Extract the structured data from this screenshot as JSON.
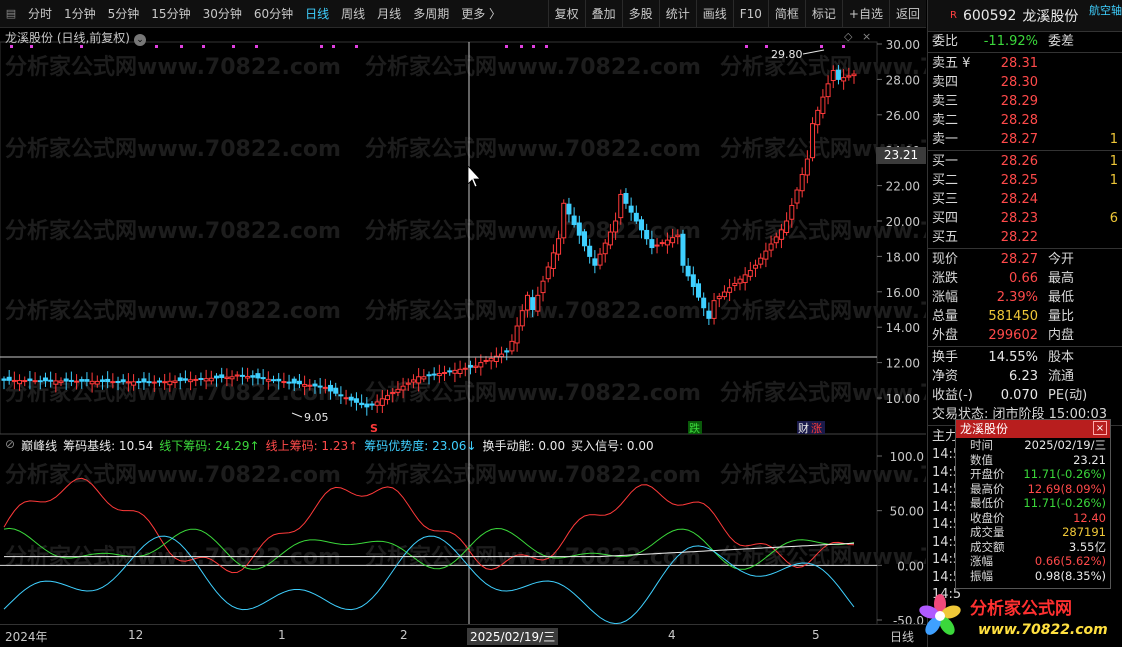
{
  "toolbar": {
    "periods": [
      "分时",
      "1分钟",
      "5分钟",
      "15分钟",
      "30分钟",
      "60分钟",
      "日线",
      "周线",
      "月线",
      "多周期",
      "更多 〉"
    ],
    "active_period": "日线",
    "buttons": [
      "复权",
      "叠加",
      "多股",
      "统计",
      "画线",
      "F10",
      "简框",
      "标记",
      "+自选",
      "返回"
    ]
  },
  "chart": {
    "title": "龙溪股份 (日线,前复权)",
    "max_label": "29.80",
    "min_label": "9.05",
    "cursor_price": "23.21",
    "event_labels": [
      "S",
      "跌",
      "财",
      "涨"
    ],
    "y_ticks": [
      "30.00",
      "28.00",
      "26.00",
      "24.00",
      "22.00",
      "20.00",
      "18.00",
      "16.00",
      "14.00",
      "12.00",
      "10.00"
    ],
    "watermark": "分析家公式网www.70822.com"
  },
  "indicator": {
    "name": "巅峰线",
    "items": [
      {
        "label": "筹码基线: 10.54",
        "color": "#e8e8e8"
      },
      {
        "label": "线下筹码: 24.29",
        "color": "#3bd83b",
        "arrow": "↑"
      },
      {
        "label": "线上筹码: 1.23",
        "color": "#ff4a4a",
        "arrow": "↑"
      },
      {
        "label": "筹码优势度: 23.06",
        "color": "#3fd0ff",
        "arrow": "↓"
      },
      {
        "label": "换手动能: 0.00",
        "color": "#e8e8e8"
      },
      {
        "label": "买入信号: 0.00",
        "color": "#e8e8e8"
      }
    ],
    "y_ticks": [
      "100.0",
      "50.00",
      "0.00",
      "-50.0"
    ]
  },
  "date_axis": {
    "labels": [
      "2024年",
      "12",
      "1",
      "2",
      "4",
      "5"
    ],
    "cursor_date": "2025/02/19/三",
    "period": "日线"
  },
  "quote": {
    "code": "600592",
    "name": "龙溪股份",
    "sector": "航空轴",
    "weibi_label": "委比",
    "weibi": "-11.92%",
    "weicha_label": "委差",
    "sell": [
      {
        "label": "卖五 ¥",
        "price": "28.31"
      },
      {
        "label": "卖四",
        "price": "28.30"
      },
      {
        "label": "卖三",
        "price": "28.29"
      },
      {
        "label": "卖二",
        "price": "28.28"
      },
      {
        "label": "卖一",
        "price": "28.27",
        "vol": "1"
      }
    ],
    "buy": [
      {
        "label": "买一",
        "price": "28.26",
        "vol": "1"
      },
      {
        "label": "买二",
        "price": "28.25",
        "vol": "1"
      },
      {
        "label": "买三",
        "price": "28.24"
      },
      {
        "label": "买四",
        "price": "28.23",
        "vol": "6"
      },
      {
        "label": "买五",
        "price": "28.22"
      }
    ],
    "stats": [
      {
        "l": "现价",
        "v": "28.27",
        "vc": "red",
        "l2": "今开"
      },
      {
        "l": "涨跌",
        "v": "0.66",
        "vc": "red",
        "l2": "最高"
      },
      {
        "l": "涨幅",
        "v": "2.39%",
        "vc": "red",
        "l2": "最低"
      },
      {
        "l": "总量",
        "v": "581450",
        "vc": "yellow",
        "l2": "量比"
      },
      {
        "l": "外盘",
        "v": "299602",
        "vc": "red",
        "l2": "内盘"
      }
    ],
    "stats2": [
      {
        "l": "换手",
        "v": "14.55%",
        "vc": "white",
        "l2": "股本"
      },
      {
        "l": "净资",
        "v": "6.23",
        "vc": "white",
        "l2": "流通"
      },
      {
        "l": "收益(-)",
        "v": "0.070",
        "vc": "white",
        "l2": "PE(动)"
      }
    ],
    "trade_status": "交易状态: 闭市阶段 15:00:03",
    "zhuli": "主力",
    "times": [
      "14:5",
      "14:5",
      "14:5",
      "14:5",
      "14:5",
      "14:5",
      "14:5",
      "14:5",
      "14:5"
    ]
  },
  "popup": {
    "title": "龙溪股份",
    "close": "×",
    "rows": [
      {
        "k": "时间",
        "v": "2025/02/19/三",
        "c": "white"
      },
      {
        "k": "数值",
        "v": "23.21",
        "c": "white"
      },
      {
        "k": "开盘价",
        "v": "11.71(-0.26%)",
        "c": "green"
      },
      {
        "k": "最高价",
        "v": "12.69(8.09%)",
        "c": "red"
      },
      {
        "k": "最低价",
        "v": "11.71(-0.26%)",
        "c": "green"
      },
      {
        "k": "收盘价",
        "v": "12.40",
        "c": "red"
      },
      {
        "k": "成交量",
        "v": "287191",
        "c": "yellow"
      },
      {
        "k": "成交额",
        "v": "3.55亿",
        "c": "white"
      },
      {
        "k": "涨幅",
        "v": "0.66(5.62%)",
        "c": "red"
      },
      {
        "k": "振幅",
        "v": "0.98(8.35%)",
        "c": "white"
      }
    ]
  },
  "logo": {
    "text": "分析家公式网",
    "url": "www.70822.com"
  }
}
